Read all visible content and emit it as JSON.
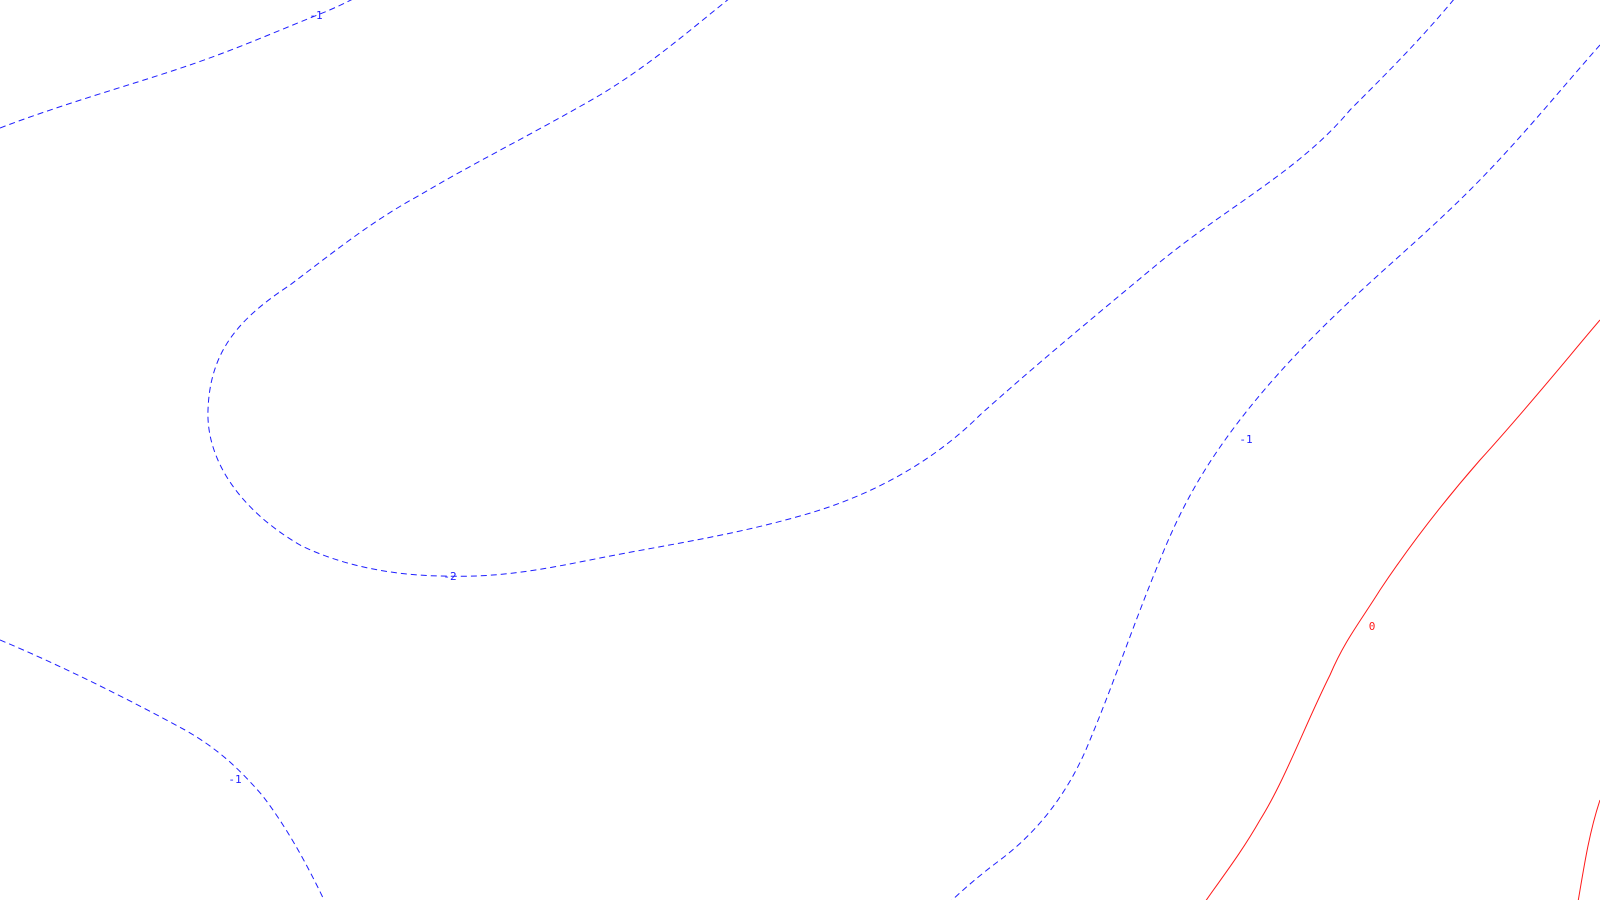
{
  "colors": {
    "negative": "#1f1fff",
    "zero": "#ff1a1a",
    "background": "#ffffff"
  },
  "contours": [
    {
      "id": "c1",
      "level": "-1",
      "label": "-1",
      "kind": "negative"
    },
    {
      "id": "c2",
      "level": "-2",
      "label": "-2",
      "kind": "negative"
    },
    {
      "id": "c3",
      "level": "-1",
      "label": "-1",
      "kind": "negative"
    },
    {
      "id": "c4",
      "level": "-1",
      "label": "-1",
      "kind": "negative"
    },
    {
      "id": "c5",
      "level": "-1",
      "label": "",
      "kind": "negative"
    },
    {
      "id": "c6",
      "level": "0",
      "label": "0",
      "kind": "zero"
    },
    {
      "id": "c7",
      "level": "0",
      "label": "",
      "kind": "zero"
    }
  ]
}
